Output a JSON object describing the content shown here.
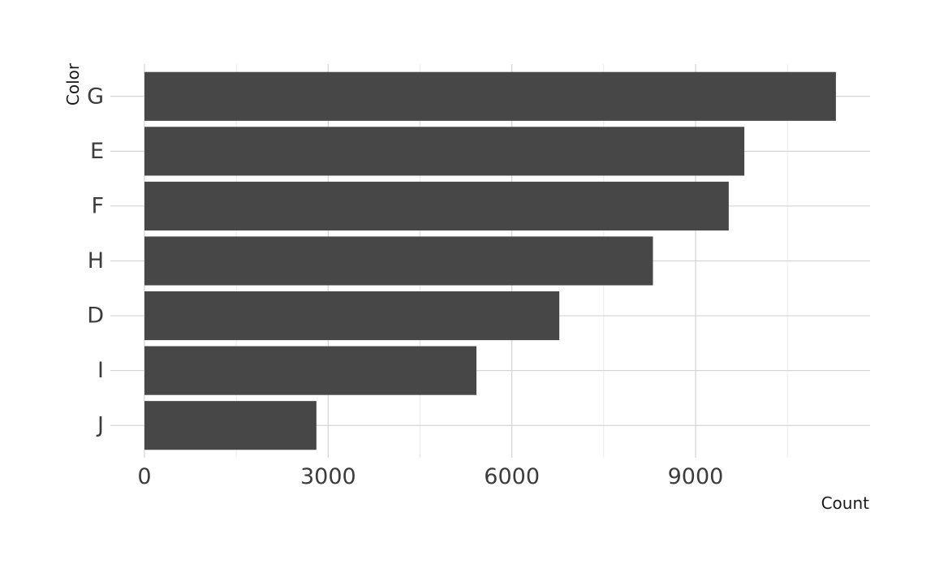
{
  "chart_data": {
    "type": "bar",
    "orientation": "horizontal",
    "title": "",
    "xlabel": "Count",
    "ylabel": "Color",
    "categories": [
      "G",
      "E",
      "F",
      "H",
      "D",
      "I",
      "J"
    ],
    "values": [
      11292,
      9797,
      9542,
      8304,
      6775,
      5422,
      2808
    ],
    "xlim": [
      0,
      11850
    ],
    "xticks": [
      0,
      3000,
      6000,
      9000
    ],
    "xtick_labels": [
      "0",
      "3000",
      "6000",
      "9000"
    ],
    "minor_xticks": [
      1500,
      4500,
      7500,
      10500
    ],
    "grid": true,
    "colors": {
      "bar": "#474747",
      "grid_major": "#d4d4d4",
      "grid_minor": "#e6e6e6",
      "text": "#3c3c3c",
      "background": "#ffffff"
    }
  }
}
